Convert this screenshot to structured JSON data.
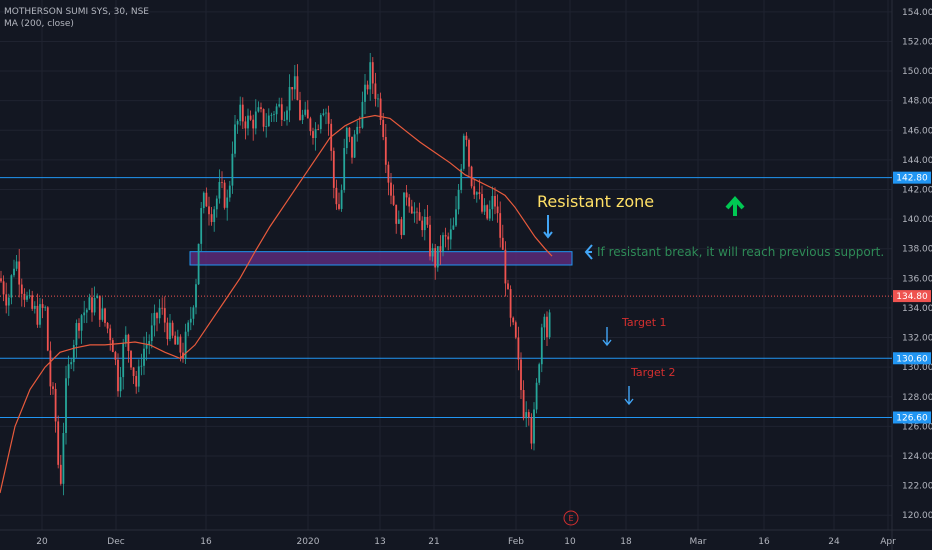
{
  "legend": {
    "symbol": "MOTHERSON SUMI SYS, 30, NSE",
    "indicator": "MA (200, close)"
  },
  "colors": {
    "background": "#131722",
    "grid": "#1f2330",
    "bull": "#26a69a",
    "bear": "#ef5350",
    "ma": "#e85a3c",
    "hline": "#2196f3",
    "price_line": "#ef5350",
    "zone_fill": "#5b2a78",
    "zone_border": "#2196f3",
    "zone_label": "#ffe066",
    "annotation_text": "#2e8b57",
    "target_text": "#d32f2f",
    "arrow_blue": "#42a5f5",
    "arrow_green": "#00c853"
  },
  "chart_data": {
    "type": "candlestick",
    "symbol": "MOTHERSON SUMI SYS",
    "interval": "30",
    "exchange": "NSE",
    "indicator": "MA (200, close)",
    "ylim": [
      119,
      154.8
    ],
    "y_ticks": [
      "154.00",
      "152.00",
      "150.00",
      "148.00",
      "146.00",
      "144.00",
      "142.00",
      "140.00",
      "138.00",
      "136.00",
      "134.00",
      "132.00",
      "130.00",
      "128.00",
      "126.00",
      "124.00",
      "122.00",
      "120.00"
    ],
    "x_ticks": [
      "20",
      "Dec",
      "16",
      "2020",
      "13",
      "21",
      "Feb",
      "10",
      "18",
      "Mar",
      "16",
      "24",
      "Apr"
    ],
    "price_label": "134.80",
    "price_level": 134.8,
    "hlines": [
      {
        "value": 142.8,
        "label": "142.80"
      },
      {
        "value": 130.6,
        "label": "130.60"
      },
      {
        "value": 126.6,
        "label": "126.60"
      }
    ],
    "resistant_zone": {
      "label": "Resistant zone",
      "low": 136.9,
      "high": 137.8
    },
    "annotation": "If resistant break, it will reach previous support.",
    "targets": [
      "Target 1",
      "Target 2"
    ],
    "event_marker": "E",
    "price_path": [
      [
        0,
        136.0
      ],
      [
        8,
        134.5
      ],
      [
        15,
        137.5
      ],
      [
        22,
        135.5
      ],
      [
        30,
        134.0
      ],
      [
        38,
        133.5
      ],
      [
        45,
        134.0
      ],
      [
        50,
        129.0
      ],
      [
        55,
        127.0
      ],
      [
        60,
        121.5
      ],
      [
        65,
        128.0
      ],
      [
        72,
        131.5
      ],
      [
        80,
        133.5
      ],
      [
        88,
        134.0
      ],
      [
        96,
        134.5
      ],
      [
        105,
        133.0
      ],
      [
        112,
        132.0
      ],
      [
        118,
        129.0
      ],
      [
        125,
        132.0
      ],
      [
        130,
        131.0
      ],
      [
        137,
        128.5
      ],
      [
        142,
        131.0
      ],
      [
        150,
        132.0
      ],
      [
        160,
        134.0
      ],
      [
        168,
        132.5
      ],
      [
        175,
        131.5
      ],
      [
        183,
        131.0
      ],
      [
        190,
        133.0
      ],
      [
        196,
        136.0
      ],
      [
        200,
        140.0
      ],
      [
        205,
        141.5
      ],
      [
        212,
        140.5
      ],
      [
        220,
        142.0
      ],
      [
        228,
        141.0
      ],
      [
        233,
        145.5
      ],
      [
        240,
        147.0
      ],
      [
        250,
        146.5
      ],
      [
        258,
        147.0
      ],
      [
        266,
        146.5
      ],
      [
        275,
        147.5
      ],
      [
        285,
        147.5
      ],
      [
        293,
        149.5
      ],
      [
        300,
        147.0
      ],
      [
        308,
        146.5
      ],
      [
        316,
        146.0
      ],
      [
        322,
        148.0
      ],
      [
        328,
        147.0
      ],
      [
        334,
        142.0
      ],
      [
        340,
        140.5
      ],
      [
        346,
        146.0
      ],
      [
        352,
        144.5
      ],
      [
        358,
        146.5
      ],
      [
        364,
        148.0
      ],
      [
        370,
        150.0
      ],
      [
        376,
        148.5
      ],
      [
        382,
        147.0
      ],
      [
        388,
        143.0
      ],
      [
        394,
        141.0
      ],
      [
        400,
        139.0
      ],
      [
        406,
        142.0
      ],
      [
        412,
        141.0
      ],
      [
        418,
        139.5
      ],
      [
        424,
        140.0
      ],
      [
        430,
        138.0
      ],
      [
        436,
        137.0
      ],
      [
        442,
        138.5
      ],
      [
        448,
        138.5
      ],
      [
        455,
        139.5
      ],
      [
        460,
        143.0
      ],
      [
        465,
        147.0
      ],
      [
        470,
        143.0
      ],
      [
        476,
        142.0
      ],
      [
        482,
        140.5
      ],
      [
        488,
        140.0
      ],
      [
        494,
        141.5
      ],
      [
        500,
        139.0
      ],
      [
        506,
        136.0
      ],
      [
        510,
        133.0
      ],
      [
        515,
        132.0
      ],
      [
        520,
        129.0
      ],
      [
        524,
        127.0
      ],
      [
        528,
        128.0
      ],
      [
        532,
        125.0
      ],
      [
        536,
        128.0
      ],
      [
        540,
        131.5
      ],
      [
        544,
        134.5
      ],
      [
        548,
        131.5
      ],
      [
        552,
        135.5
      ]
    ],
    "ma_path": [
      [
        0,
        121.5
      ],
      [
        15,
        126.0
      ],
      [
        30,
        128.5
      ],
      [
        45,
        130.0
      ],
      [
        60,
        131.0
      ],
      [
        75,
        131.3
      ],
      [
        90,
        131.5
      ],
      [
        105,
        131.5
      ],
      [
        120,
        131.6
      ],
      [
        135,
        131.7
      ],
      [
        150,
        131.5
      ],
      [
        165,
        131.0
      ],
      [
        180,
        130.6
      ],
      [
        195,
        131.5
      ],
      [
        210,
        133.0
      ],
      [
        225,
        134.5
      ],
      [
        240,
        136.0
      ],
      [
        255,
        137.8
      ],
      [
        270,
        139.5
      ],
      [
        285,
        141.0
      ],
      [
        300,
        142.5
      ],
      [
        315,
        144.0
      ],
      [
        330,
        145.5
      ],
      [
        345,
        146.3
      ],
      [
        360,
        146.8
      ],
      [
        375,
        147.0
      ],
      [
        390,
        146.8
      ],
      [
        405,
        146.0
      ],
      [
        420,
        145.2
      ],
      [
        435,
        144.5
      ],
      [
        450,
        143.8
      ],
      [
        465,
        143.0
      ],
      [
        480,
        142.5
      ],
      [
        495,
        142.0
      ],
      [
        505,
        141.6
      ],
      [
        515,
        140.8
      ],
      [
        525,
        139.8
      ],
      [
        535,
        138.8
      ],
      [
        545,
        138.0
      ],
      [
        552,
        137.5
      ]
    ]
  }
}
